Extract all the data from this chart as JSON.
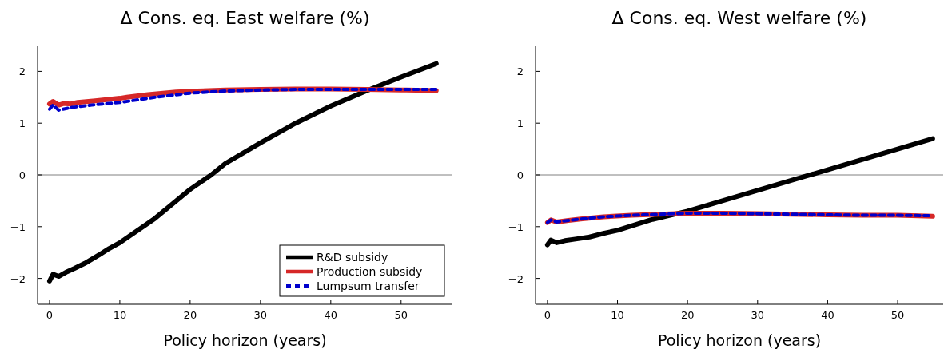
{
  "chart_data": [
    {
      "type": "line",
      "title": "Δ Cons. eq. East welfare (%)",
      "xlabel": "Policy horizon (years)",
      "xlim": [
        -1.7,
        57.3
      ],
      "xticks": [
        0,
        10,
        20,
        30,
        40,
        50
      ],
      "ylim": [
        -2.5,
        2.5
      ],
      "yticks": [
        -2,
        -1,
        0,
        1,
        2
      ],
      "grid": false,
      "legend": "bottom right",
      "ref_lines": [
        {
          "axis": "y",
          "value": 0,
          "color": "#808080"
        }
      ],
      "series": [
        {
          "name": "R&D subsidy",
          "color": "#000000",
          "line_style": "solid",
          "x": [
            0,
            0.5,
            1.3,
            2.5,
            3.5,
            5,
            7,
            8.5,
            10,
            15,
            20,
            23,
            25,
            30,
            35,
            40,
            45,
            50,
            55
          ],
          "values": [
            -2.05,
            -1.92,
            -1.96,
            -1.87,
            -1.81,
            -1.71,
            -1.55,
            -1.42,
            -1.31,
            -0.84,
            -0.28,
            0,
            0.22,
            0.62,
            1.0,
            1.33,
            1.62,
            1.89,
            2.15
          ]
        },
        {
          "name": "Production subsidy",
          "color": "#d62828",
          "line_style": "solid",
          "x": [
            0,
            0.5,
            1.3,
            2,
            3,
            4,
            6.5,
            10,
            11,
            14,
            18,
            21,
            25,
            30,
            35,
            40,
            45,
            50,
            55
          ],
          "values": [
            1.37,
            1.42,
            1.35,
            1.38,
            1.37,
            1.4,
            1.43,
            1.48,
            1.5,
            1.55,
            1.6,
            1.62,
            1.64,
            1.65,
            1.66,
            1.66,
            1.65,
            1.64,
            1.63
          ]
        },
        {
          "name": "Lumpsum transfer",
          "color": "#0000cc",
          "line_style": "dashed",
          "x": [
            0,
            0.5,
            1.3,
            3,
            6,
            10,
            15,
            20,
            25,
            30,
            35,
            40,
            45,
            50,
            55
          ],
          "values": [
            1.27,
            1.35,
            1.25,
            1.3,
            1.35,
            1.4,
            1.5,
            1.58,
            1.62,
            1.64,
            1.65,
            1.65,
            1.65,
            1.65,
            1.65
          ]
        }
      ]
    },
    {
      "type": "line",
      "title": "Δ Cons. eq. West welfare (%)",
      "xlabel": "Policy horizon (years)",
      "xlim": [
        -1.7,
        56.5
      ],
      "xticks": [
        0,
        10,
        20,
        30,
        40,
        50
      ],
      "ylim": [
        -2.5,
        2.5
      ],
      "yticks": [
        -2,
        -1,
        0,
        1,
        2
      ],
      "grid": false,
      "ref_lines": [
        {
          "axis": "y",
          "value": 0,
          "color": "#808080"
        }
      ],
      "series": [
        {
          "color": "#000000",
          "line_style": "solid",
          "x": [
            0,
            0.5,
            1.3,
            2.5,
            4,
            6,
            8,
            10,
            15,
            20,
            25,
            30,
            35,
            40,
            45,
            50,
            55
          ],
          "values": [
            -1.35,
            -1.26,
            -1.31,
            -1.27,
            -1.24,
            -1.2,
            -1.13,
            -1.07,
            -0.86,
            -0.7,
            -0.5,
            -0.3,
            -0.1,
            0.1,
            0.3,
            0.5,
            0.7
          ]
        },
        {
          "color": "#d62828",
          "line_style": "solid",
          "x": [
            0,
            0.5,
            1.3,
            3,
            5,
            8,
            12,
            16,
            20,
            25,
            30,
            35,
            40,
            45,
            50,
            55
          ],
          "values": [
            -0.92,
            -0.87,
            -0.91,
            -0.88,
            -0.85,
            -0.81,
            -0.78,
            -0.76,
            -0.74,
            -0.74,
            -0.75,
            -0.76,
            -0.77,
            -0.78,
            -0.78,
            -0.8
          ]
        },
        {
          "color": "#0000cc",
          "line_style": "dashed",
          "x": [
            0,
            0.5,
            1.3,
            3,
            5,
            8,
            12,
            16,
            20,
            25,
            30,
            35,
            40,
            45,
            50,
            55
          ],
          "values": [
            -0.92,
            -0.87,
            -0.91,
            -0.88,
            -0.85,
            -0.81,
            -0.78,
            -0.76,
            -0.74,
            -0.74,
            -0.75,
            -0.76,
            -0.77,
            -0.78,
            -0.78,
            -0.79
          ]
        }
      ]
    }
  ]
}
